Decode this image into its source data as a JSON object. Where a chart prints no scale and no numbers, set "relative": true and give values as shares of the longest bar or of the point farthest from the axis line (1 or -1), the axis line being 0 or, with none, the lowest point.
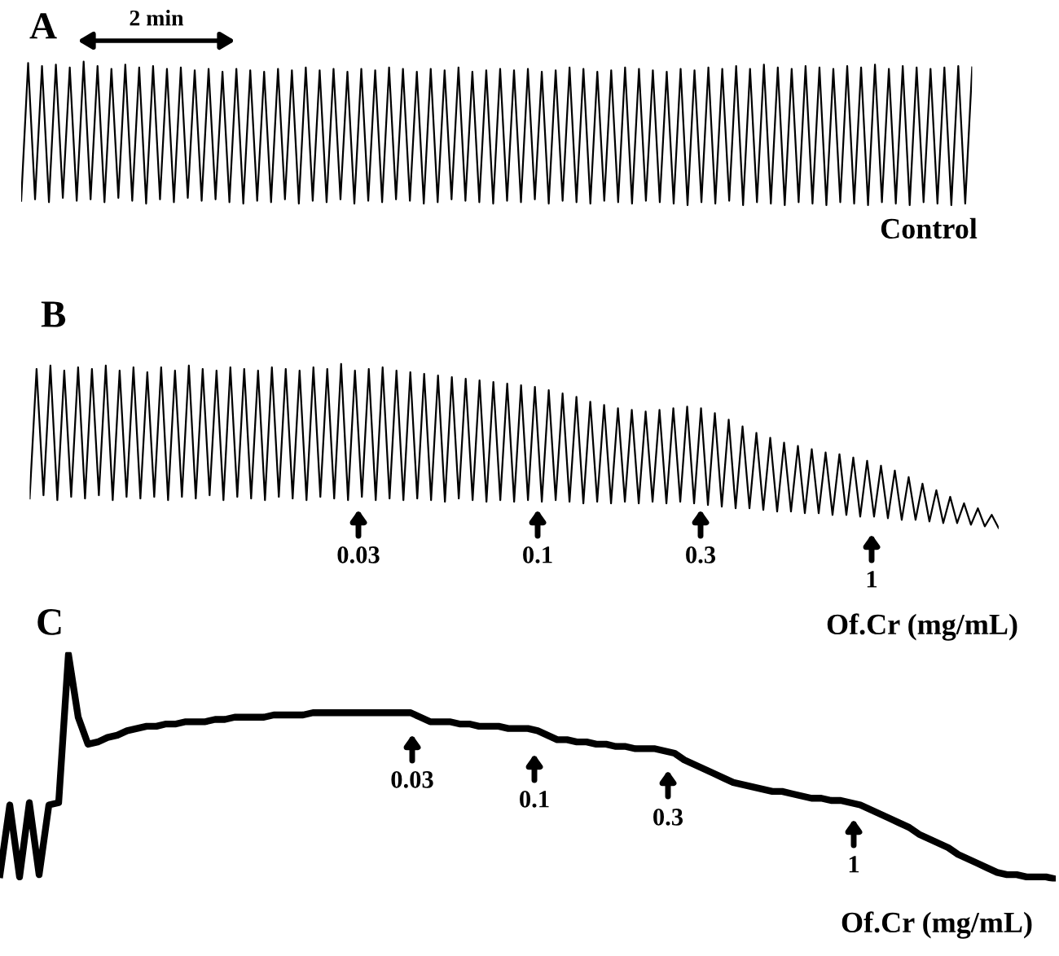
{
  "chart_data": [
    {
      "type": "line",
      "title": "A",
      "relative": true,
      "tick_labels": false,
      "categories": [
        null,
        null,
        null,
        null,
        null,
        null,
        null,
        null,
        null,
        null,
        null,
        null,
        null,
        null,
        null,
        null,
        null,
        null,
        null,
        null,
        null,
        null,
        null,
        null,
        null,
        null,
        null,
        null,
        null,
        null,
        null,
        null,
        null,
        null,
        null,
        null,
        null,
        null,
        null,
        null,
        null,
        null,
        null,
        null,
        null,
        null,
        null,
        null,
        null,
        null,
        null,
        null,
        null,
        null,
        null,
        null,
        null,
        null,
        null,
        null,
        null,
        null,
        null,
        null,
        null,
        null,
        null,
        null,
        null,
        null,
        null,
        null,
        null,
        null,
        null,
        null,
        null,
        null,
        null,
        null,
        null,
        null,
        null,
        null,
        null,
        null,
        null,
        null,
        null,
        null,
        null,
        null,
        null,
        null,
        null,
        null,
        null,
        null,
        null,
        null,
        null,
        null,
        null,
        null,
        null,
        null,
        null,
        null,
        null,
        null,
        null,
        null,
        null,
        null,
        null,
        null,
        null,
        null,
        null,
        null,
        null,
        null,
        null,
        null,
        null,
        null,
        null,
        null,
        null,
        null,
        null,
        null,
        null,
        null,
        null,
        null,
        null,
        null
      ],
      "series": [
        {
          "color": "#000000",
          "values": [
            0.03,
            0.99,
            0.04,
            0.97,
            0.02,
            0.98,
            0.05,
            0.96,
            0.03,
            1,
            0.04,
            0.97,
            0.02,
            0.95,
            0.05,
            0.98,
            0.03,
            0.96,
            0.01,
            0.97,
            0.04,
            0.95,
            0.02,
            0.96,
            0.05,
            0.94,
            0.03,
            0.95,
            0.04,
            0.93,
            0.02,
            0.95,
            0.01,
            0.94,
            0.03,
            0.93,
            0.02,
            0.95,
            0.04,
            0.94,
            0.01,
            0.96,
            0.03,
            0.94,
            0.02,
            0.95,
            0.04,
            0.93,
            0.01,
            0.95,
            0.03,
            0.94,
            0.02,
            0.96,
            0.04,
            0.95,
            0.03,
            0.93,
            0.01,
            0.95,
            0.02,
            0.94,
            0.04,
            0.96,
            0.03,
            0.93,
            0.02,
            0.94,
            0.01,
            0.95,
            0.03,
            0.94,
            0.02,
            0.95,
            0.04,
            0.93,
            0.01,
            0.94,
            0.03,
            0.96,
            0.02,
            0.95,
            0.01,
            0.93,
            0.03,
            0.94,
            0.02,
            0.96,
            0.01,
            0.95,
            0.03,
            0.94,
            0.02,
            0.93,
            0.01,
            0.95,
            0,
            0.94,
            0.02,
            0.96,
            0.01,
            0.95,
            0.03,
            0.97,
            0,
            0.95,
            0.02,
            0.98,
            0.01,
            0.96,
            0,
            0.95,
            0.02,
            0.97,
            0.01,
            0.96,
            0,
            0.95,
            0.02,
            0.97,
            0.01,
            0.96,
            0,
            0.98,
            0.02,
            0.95,
            0.01,
            0.97,
            0,
            0.96,
            0.02,
            0.95,
            0.01,
            0.96,
            0,
            0.97,
            0.01,
            0.96
          ]
        }
      ],
      "annotations": [
        "2 min",
        "Control"
      ]
    },
    {
      "type": "line",
      "title": "B",
      "relative": true,
      "tick_labels": false,
      "categories": [
        null,
        null,
        null,
        null,
        null,
        null,
        null,
        null,
        null,
        null,
        null,
        null,
        null,
        null,
        null,
        null,
        null,
        null,
        null,
        null,
        null,
        null,
        null,
        null,
        null,
        null,
        null,
        null,
        null,
        null,
        null,
        null,
        null,
        null,
        null,
        null,
        null,
        null,
        null,
        null,
        null,
        null,
        null,
        null,
        null,
        null,
        null,
        null,
        null,
        null,
        null,
        null,
        null,
        null,
        null,
        null,
        null,
        null,
        null,
        null,
        null,
        null,
        null,
        null,
        null,
        null,
        null,
        null,
        null,
        null,
        null,
        null,
        null,
        null,
        null,
        null,
        null,
        null,
        null,
        null,
        null,
        null,
        null,
        null,
        null,
        null,
        null,
        null,
        null,
        null,
        null,
        null,
        null,
        null,
        null,
        null,
        null,
        null,
        null,
        null,
        null,
        null,
        null,
        null,
        null,
        null,
        null,
        null,
        null,
        null,
        null,
        null,
        null,
        null,
        null,
        null,
        null,
        null,
        null,
        null,
        null,
        null,
        null,
        null,
        null,
        null,
        null,
        null,
        null,
        null,
        null,
        null,
        null,
        null,
        null,
        null,
        null,
        null,
        null,
        null,
        null
      ],
      "series": [
        {
          "color": "#000000",
          "values": [
            0.18,
            0.97,
            0.2,
            0.99,
            0.17,
            0.96,
            0.19,
            0.98,
            0.18,
            0.97,
            0.2,
            0.99,
            0.17,
            0.96,
            0.19,
            0.98,
            0.18,
            0.95,
            0.19,
            0.98,
            0.17,
            0.96,
            0.19,
            0.99,
            0.18,
            0.97,
            0.2,
            0.96,
            0.17,
            0.98,
            0.19,
            0.97,
            0.18,
            0.96,
            0.17,
            0.98,
            0.19,
            0.97,
            0.18,
            0.96,
            0.17,
            0.98,
            0.19,
            0.97,
            0.18,
            1,
            0.17,
            0.96,
            0.19,
            0.97,
            0.17,
            0.98,
            0.18,
            0.96,
            0.17,
            0.95,
            0.18,
            0.94,
            0.17,
            0.93,
            0.16,
            0.92,
            0.18,
            0.91,
            0.17,
            0.9,
            0.16,
            0.89,
            0.17,
            0.88,
            0.16,
            0.87,
            0.17,
            0.86,
            0.16,
            0.84,
            0.17,
            0.82,
            0.16,
            0.8,
            0.15,
            0.77,
            0.16,
            0.75,
            0.15,
            0.73,
            0.16,
            0.72,
            0.15,
            0.71,
            0.16,
            0.72,
            0.15,
            0.73,
            0.16,
            0.74,
            0.15,
            0.73,
            0.14,
            0.7,
            0.13,
            0.66,
            0.12,
            0.62,
            0.12,
            0.58,
            0.11,
            0.55,
            0.1,
            0.52,
            0.1,
            0.5,
            0.09,
            0.48,
            0.09,
            0.46,
            0.08,
            0.45,
            0.08,
            0.43,
            0.07,
            0.41,
            0.07,
            0.38,
            0.06,
            0.35,
            0.05,
            0.31,
            0.05,
            0.27,
            0.04,
            0.23,
            0.03,
            0.19,
            0.03,
            0.15,
            0.02,
            0.12,
            0.01,
            0.08,
            0
          ]
        }
      ],
      "annotations": [
        "0.03",
        "0.1",
        "0.3",
        "1",
        "Of.Cr (mg/mL)"
      ]
    },
    {
      "type": "line",
      "title": "C",
      "relative": true,
      "tick_labels": false,
      "categories": [
        null,
        null,
        null,
        null,
        null,
        null,
        null,
        null,
        null,
        null,
        null,
        null,
        null,
        null,
        null,
        null,
        null,
        null,
        null,
        null,
        null,
        null,
        null,
        null,
        null,
        null,
        null,
        null,
        null,
        null,
        null,
        null,
        null,
        null,
        null,
        null,
        null,
        null,
        null,
        null,
        null,
        null,
        null,
        null,
        null,
        null,
        null,
        null,
        null,
        null,
        null,
        null,
        null,
        null,
        null,
        null,
        null,
        null,
        null,
        null,
        null,
        null,
        null,
        null,
        null,
        null,
        null,
        null,
        null,
        null,
        null,
        null,
        null,
        null,
        null,
        null,
        null,
        null,
        null,
        null,
        null,
        null,
        null,
        null,
        null,
        null,
        null,
        null,
        null,
        null,
        null,
        null,
        null,
        null,
        null,
        null,
        null,
        null,
        null,
        null,
        null,
        null,
        null,
        null,
        null,
        null,
        null,
        null,
        null
      ],
      "series": [
        {
          "color": "#000000",
          "values": [
            0.02,
            0.33,
            0.01,
            0.34,
            0.02,
            0.33,
            0.34,
            1,
            0.72,
            0.6,
            0.61,
            0.63,
            0.64,
            0.66,
            0.67,
            0.68,
            0.68,
            0.69,
            0.69,
            0.7,
            0.7,
            0.7,
            0.71,
            0.71,
            0.72,
            0.72,
            0.72,
            0.72,
            0.73,
            0.73,
            0.73,
            0.73,
            0.74,
            0.74,
            0.74,
            0.74,
            0.74,
            0.74,
            0.74,
            0.74,
            0.74,
            0.74,
            0.74,
            0.72,
            0.7,
            0.7,
            0.7,
            0.69,
            0.69,
            0.68,
            0.68,
            0.68,
            0.67,
            0.67,
            0.67,
            0.66,
            0.64,
            0.62,
            0.62,
            0.61,
            0.61,
            0.6,
            0.6,
            0.59,
            0.59,
            0.58,
            0.58,
            0.58,
            0.57,
            0.56,
            0.53,
            0.51,
            0.49,
            0.47,
            0.45,
            0.43,
            0.42,
            0.41,
            0.4,
            0.39,
            0.39,
            0.38,
            0.37,
            0.36,
            0.36,
            0.35,
            0.35,
            0.34,
            0.33,
            0.31,
            0.29,
            0.27,
            0.25,
            0.23,
            0.2,
            0.18,
            0.16,
            0.14,
            0.11,
            0.09,
            0.07,
            0.05,
            0.03,
            0.02,
            0.02,
            0.01,
            0.01,
            0.01,
            0
          ]
        }
      ],
      "annotations": [
        "0.03",
        "0.1",
        "0.3",
        "1",
        "Of.Cr (mg/mL)"
      ]
    }
  ]
}
